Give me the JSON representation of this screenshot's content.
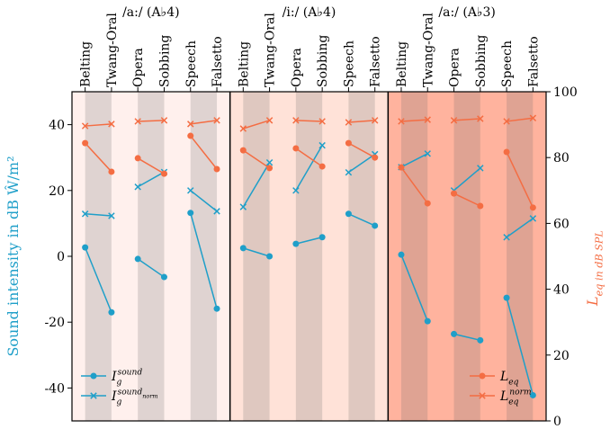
{
  "chart_data": {
    "type": "line",
    "ylabel": "Sound intensity in dB Ŵ/m²",
    "y2label": "L_eq in dB SPL",
    "ylim": [
      -50,
      50
    ],
    "yticks": [
      -40,
      -20,
      0,
      20,
      40
    ],
    "y2lim": [
      0,
      100
    ],
    "y2ticks": [
      0,
      20,
      40,
      60,
      80,
      100
    ],
    "series": [
      {
        "name": "I_g^sound",
        "color": "#1f9fc9",
        "marker": "o",
        "axis": "y"
      },
      {
        "name": "I_g^sound_norm",
        "color": "#1f9fc9",
        "marker": "x",
        "axis": "y"
      },
      {
        "name": "L_eq",
        "color": "#f46d43",
        "marker": "o",
        "axis": "y2"
      },
      {
        "name": "L_eq^norm",
        "color": "#f46d43",
        "marker": "x",
        "axis": "y2"
      }
    ],
    "panels": [
      {
        "title": "/a:/ (A♭4)",
        "background": "#fff0ed",
        "categories": [
          "Belting",
          "Twang-Oral",
          "Opera",
          "Sobbing",
          "Speech",
          "Falsetto"
        ],
        "values": [
          [
            2.7,
            -17,
            -0.8,
            -6.3,
            13.2,
            -15.9
          ],
          [
            12.9,
            12.3,
            21.1,
            25.6,
            20,
            13.7
          ],
          [
            84.4,
            75.7,
            79.8,
            75.1,
            86.6,
            76.5
          ],
          [
            89.6,
            90.2,
            91,
            91.3,
            90.2,
            91.3
          ]
        ]
      },
      {
        "title": "/i:/ (A♭4)",
        "background": "#ffe2d8",
        "categories": [
          "Belting",
          "Twang-Oral",
          "Opera",
          "Sobbing",
          "Speech",
          "Falsetto"
        ],
        "values": [
          [
            2.5,
            0,
            3.8,
            5.8,
            12.9,
            9.3
          ],
          [
            15,
            28.5,
            20,
            33.7,
            25.5,
            31
          ],
          [
            82.2,
            76.8,
            82.8,
            77.3,
            84.4,
            80
          ],
          [
            88.8,
            91.3,
            91.3,
            91,
            90.7,
            91.3
          ]
        ]
      },
      {
        "title": "/a:/ (A♭3)",
        "background": "#ffb39e",
        "categories": [
          "Belting",
          "Twang-Oral",
          "Opera",
          "Sobbing",
          "Speech",
          "Falsetto"
        ],
        "values": [
          [
            0.5,
            -19.7,
            -23.6,
            -25.5,
            -12.6,
            -42.2
          ],
          [
            27.1,
            31.2,
            20,
            26.8,
            5.8,
            11.5
          ],
          [
            77,
            66.1,
            69.1,
            65.3,
            81.7,
            64.8
          ],
          [
            91,
            91.5,
            91.3,
            91.8,
            91,
            92
          ]
        ]
      }
    ]
  }
}
